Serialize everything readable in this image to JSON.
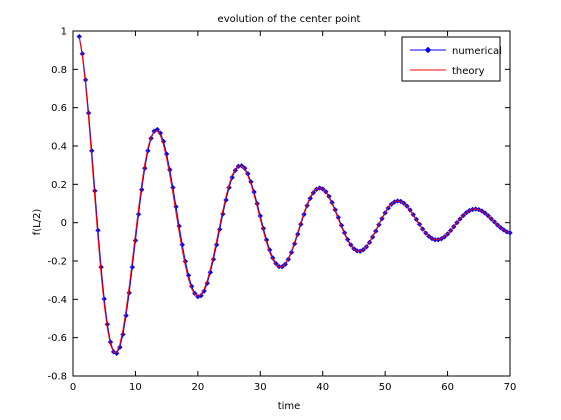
{
  "chart_data": {
    "type": "line",
    "title": "evolution of the center point",
    "xlabel": "time",
    "ylabel": "f(L/2)",
    "xlim": [
      0,
      70
    ],
    "ylim": [
      -0.8,
      1
    ],
    "xticks": [
      0,
      10,
      20,
      30,
      40,
      50,
      60,
      70
    ],
    "yticks": [
      -0.8,
      -0.6,
      -0.4,
      -0.2,
      0,
      0.2,
      0.4,
      0.6,
      0.8,
      1
    ],
    "xtick_labels": [
      "0",
      "10",
      "20",
      "30",
      "40",
      "50",
      "60",
      "70"
    ],
    "ytick_labels": [
      "-0.8",
      "-0.6",
      "-0.4",
      "-0.2",
      "0",
      "0.2",
      "0.4",
      "0.6",
      "0.8",
      "1"
    ],
    "grid": false,
    "legend_position": "top-right",
    "series": [
      {
        "name": "numerical",
        "color": "#0000ff",
        "marker": "diamond",
        "x": [
          1.0,
          1.5,
          2.0,
          2.5,
          3.0,
          3.5,
          4.0,
          4.5,
          5.0,
          5.5,
          6.0,
          6.5,
          7.0,
          7.5,
          8.0,
          8.5,
          9.0,
          9.5,
          10.0,
          10.5,
          11.0,
          11.5,
          12.0,
          12.5,
          13.0,
          13.5,
          14.0,
          14.5,
          15.0,
          15.5,
          16.0,
          16.5,
          17.0,
          17.5,
          18.0,
          18.5,
          19.0,
          19.5,
          20.0,
          20.5,
          21.0,
          21.5,
          22.0,
          22.5,
          23.0,
          23.5,
          24.0,
          24.5,
          25.0,
          25.5,
          26.0,
          26.5,
          27.0,
          27.5,
          28.0,
          28.5,
          29.0,
          29.5,
          30.0,
          30.5,
          31.0,
          31.5,
          32.0,
          32.5,
          33.0,
          33.5,
          34.0,
          34.5,
          35.0,
          35.5,
          36.0,
          36.5,
          37.0,
          37.5,
          38.0,
          38.5,
          39.0,
          39.5,
          40.0,
          40.5,
          41.0,
          41.5,
          42.0,
          42.5,
          43.0,
          43.5,
          44.0,
          44.5,
          45.0,
          45.5,
          46.0,
          46.5,
          47.0,
          47.5,
          48.0,
          48.5,
          49.0,
          49.5,
          50.0,
          50.5,
          51.0,
          51.5,
          52.0,
          52.5,
          53.0,
          53.5,
          54.0,
          54.5,
          55.0,
          55.5,
          56.0,
          56.5,
          57.0,
          57.5,
          58.0,
          58.5,
          59.0,
          59.5,
          60.0,
          60.5,
          61.0,
          61.5,
          62.0,
          62.5,
          63.0,
          63.5,
          64.0,
          64.5,
          65.0,
          65.5,
          66.0,
          66.5,
          67.0,
          67.5,
          68.0,
          68.5,
          69.0,
          69.5,
          70.0
        ],
        "y": [
          0.971,
          0.881,
          0.745,
          0.572,
          0.375,
          0.166,
          -0.04,
          -0.232,
          -0.398,
          -0.53,
          -0.623,
          -0.674,
          -0.682,
          -0.65,
          -0.583,
          -0.485,
          -0.366,
          -0.232,
          -0.093,
          0.044,
          0.172,
          0.284,
          0.375,
          0.44,
          0.477,
          0.486,
          0.467,
          0.424,
          0.358,
          0.276,
          0.183,
          0.083,
          -0.018,
          -0.115,
          -0.202,
          -0.275,
          -0.332,
          -0.369,
          -0.386,
          -0.381,
          -0.357,
          -0.316,
          -0.259,
          -0.191,
          -0.115,
          -0.035,
          0.045,
          0.118,
          0.183,
          0.236,
          0.273,
          0.294,
          0.297,
          0.284,
          0.255,
          0.213,
          0.16,
          0.099,
          0.035,
          -0.03,
          -0.09,
          -0.142,
          -0.184,
          -0.213,
          -0.229,
          -0.23,
          -0.217,
          -0.191,
          -0.155,
          -0.11,
          -0.06,
          -0.008,
          0.043,
          0.089,
          0.127,
          0.156,
          0.174,
          0.181,
          0.176,
          0.161,
          0.137,
          0.105,
          0.067,
          0.027,
          -0.014,
          -0.053,
          -0.088,
          -0.116,
          -0.136,
          -0.147,
          -0.149,
          -0.141,
          -0.126,
          -0.103,
          -0.075,
          -0.044,
          -0.011,
          0.021,
          0.051,
          0.076,
          0.096,
          0.108,
          0.113,
          0.111,
          0.101,
          0.086,
          0.066,
          0.042,
          0.017,
          -0.008,
          -0.033,
          -0.054,
          -0.071,
          -0.083,
          -0.089,
          -0.089,
          -0.084,
          -0.074,
          -0.059,
          -0.041,
          -0.021,
          -0.0,
          0.019,
          0.037,
          0.052,
          0.063,
          0.069,
          0.071,
          0.068,
          0.061,
          0.05,
          0.036,
          0.02,
          0.004,
          -0.012,
          -0.026,
          -0.038,
          -0.048,
          -0.053
        ]
      },
      {
        "name": "theory",
        "color": "#ff0000",
        "marker": "none",
        "x": [
          1.0,
          1.5,
          2.0,
          2.5,
          3.0,
          3.5,
          4.0,
          4.5,
          5.0,
          5.5,
          6.0,
          6.5,
          7.0,
          7.5,
          8.0,
          8.5,
          9.0,
          9.5,
          10.0,
          10.5,
          11.0,
          11.5,
          12.0,
          12.5,
          13.0,
          13.5,
          14.0,
          14.5,
          15.0,
          15.5,
          16.0,
          16.5,
          17.0,
          17.5,
          18.0,
          18.5,
          19.0,
          19.5,
          20.0,
          20.5,
          21.0,
          21.5,
          22.0,
          22.5,
          23.0,
          23.5,
          24.0,
          24.5,
          25.0,
          25.5,
          26.0,
          26.5,
          27.0,
          27.5,
          28.0,
          28.5,
          29.0,
          29.5,
          30.0,
          30.5,
          31.0,
          31.5,
          32.0,
          32.5,
          33.0,
          33.5,
          34.0,
          34.5,
          35.0,
          35.5,
          36.0,
          36.5,
          37.0,
          37.5,
          38.0,
          38.5,
          39.0,
          39.5,
          40.0,
          40.5,
          41.0,
          41.5,
          42.0,
          42.5,
          43.0,
          43.5,
          44.0,
          44.5,
          45.0,
          45.5,
          46.0,
          46.5,
          47.0,
          47.5,
          48.0,
          48.5,
          49.0,
          49.5,
          50.0,
          50.5,
          51.0,
          51.5,
          52.0,
          52.5,
          53.0,
          53.5,
          54.0,
          54.5,
          55.0,
          55.5,
          56.0,
          56.5,
          57.0,
          57.5,
          58.0,
          58.5,
          59.0,
          59.5,
          60.0,
          60.5,
          61.0,
          61.5,
          62.0,
          62.5,
          63.0,
          63.5,
          64.0,
          64.5,
          65.0,
          65.5,
          66.0,
          66.5,
          67.0,
          67.5,
          68.0,
          68.5,
          69.0,
          69.5,
          70.0
        ],
        "y": [
          0.967,
          0.869,
          0.723,
          0.541,
          0.338,
          0.126,
          -0.08,
          -0.268,
          -0.428,
          -0.552,
          -0.636,
          -0.677,
          -0.676,
          -0.635,
          -0.56,
          -0.457,
          -0.334,
          -0.199,
          -0.06,
          0.075,
          0.199,
          0.306,
          0.39,
          0.448,
          0.478,
          0.48,
          0.455,
          0.405,
          0.335,
          0.249,
          0.153,
          0.051,
          -0.049,
          -0.144,
          -0.226,
          -0.294,
          -0.344,
          -0.374,
          -0.385,
          -0.376,
          -0.347,
          -0.302,
          -0.242,
          -0.172,
          -0.095,
          -0.014,
          0.064,
          0.136,
          0.198,
          0.247,
          0.28,
          0.296,
          0.296,
          0.279,
          0.246,
          0.201,
          0.146,
          0.083,
          0.019,
          -0.045,
          -0.104,
          -0.154,
          -0.193,
          -0.219,
          -0.231,
          -0.23,
          -0.214,
          -0.186,
          -0.148,
          -0.101,
          -0.05,
          0.002,
          0.052,
          0.097,
          0.134,
          0.161,
          0.177,
          0.182,
          0.175,
          0.158,
          0.132,
          0.099,
          0.06,
          0.019,
          -0.022,
          -0.06,
          -0.094,
          -0.121,
          -0.139,
          -0.149,
          -0.149,
          -0.14,
          -0.124,
          -0.1,
          -0.071,
          -0.039,
          -0.007,
          0.025,
          0.055,
          0.079,
          0.098,
          0.109,
          0.113,
          0.11,
          0.1,
          0.084,
          0.063,
          0.039,
          0.014,
          -0.011,
          -0.035,
          -0.056,
          -0.072,
          -0.084,
          -0.089,
          -0.089,
          -0.083,
          -0.072,
          -0.057,
          -0.039,
          -0.019,
          0.002,
          0.021,
          0.039,
          0.053,
          0.064,
          0.07,
          0.071,
          0.068,
          0.06,
          0.049,
          0.035,
          0.019,
          0.003,
          -0.013,
          -0.027,
          -0.039,
          -0.048,
          -0.053
        ]
      }
    ]
  }
}
